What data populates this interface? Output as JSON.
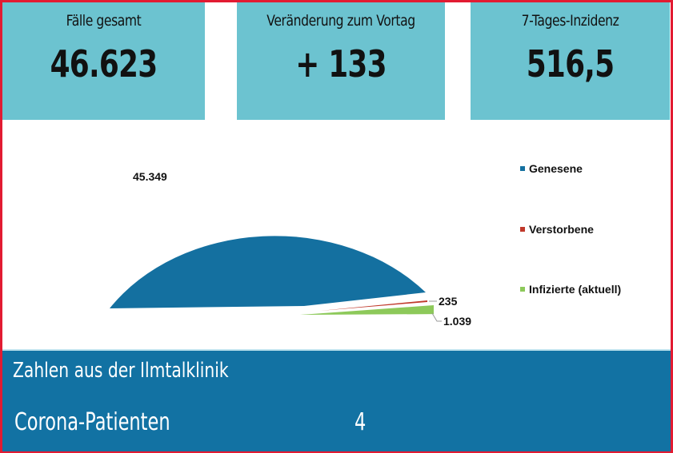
{
  "cards": [
    {
      "label": "Fälle gesamt",
      "value": "46.623"
    },
    {
      "label": "Veränderung zum Vortag",
      "value": "+ 133"
    },
    {
      "label": "7-Tages-Inzidenz",
      "value": "516,5"
    }
  ],
  "chart_data": {
    "type": "pie",
    "title": "",
    "categories": [
      "Genesene",
      "Verstorbene",
      "Infizierte (aktuell)"
    ],
    "values": [
      45349,
      235,
      1039
    ],
    "data_labels": [
      "45.349",
      "235",
      "1.039"
    ],
    "colors": [
      "#1470a0",
      "#c0392b",
      "#8dc95a"
    ],
    "legend_position": "right"
  },
  "clinic": {
    "title": "Zahlen aus der Ilmtalklinik",
    "row_label": "Corona-Patienten",
    "row_value": "4"
  },
  "colors": {
    "frame": "#e21b32",
    "card_bg": "#6cc3d0",
    "bottom_bg": "#1272a3"
  }
}
